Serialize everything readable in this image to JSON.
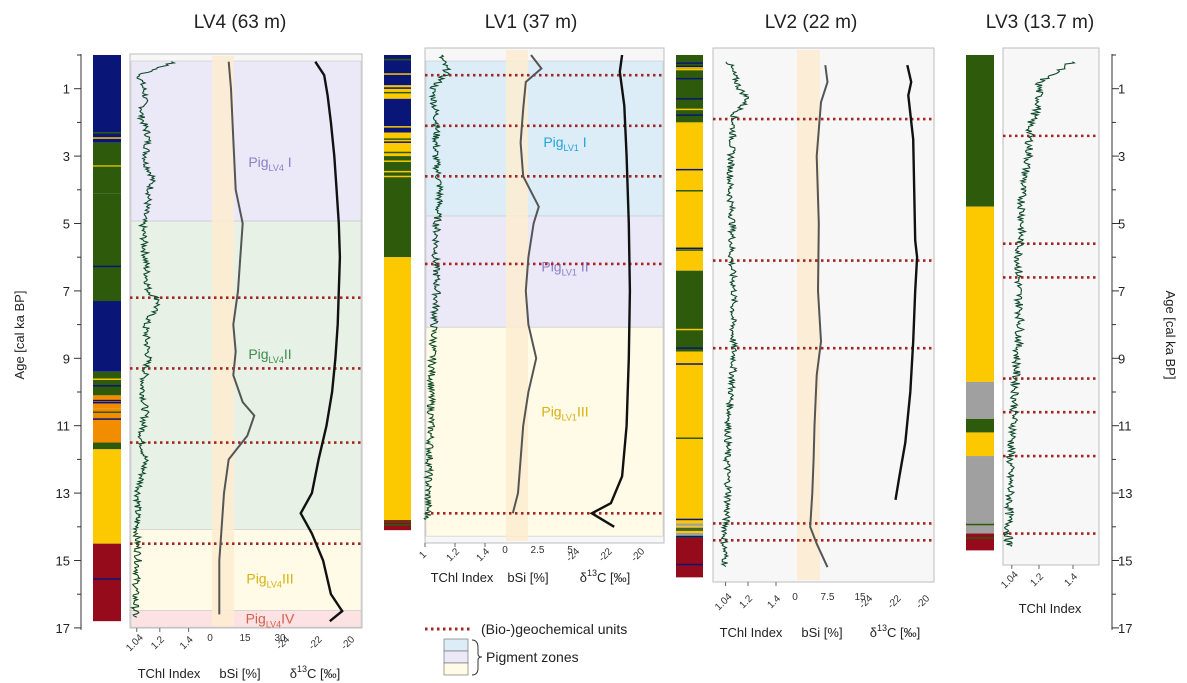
{
  "chart_data": {
    "type": "line",
    "age_axis": {
      "label": "Age [cal ka BP]",
      "ticks": [
        1,
        3,
        5,
        7,
        9,
        11,
        13,
        15,
        17
      ],
      "range": [
        0,
        17
      ]
    },
    "tchl_ticks": [
      {
        "value": 1.04,
        "label": "1.04"
      },
      {
        "value": 1.2,
        "label": "1.2"
      },
      {
        "value": 1.4,
        "label": "1.4"
      }
    ],
    "lv1_tchl_ticks": [
      {
        "value": 1.0,
        "label": "1"
      },
      {
        "value": 1.2,
        "label": "1.2"
      },
      {
        "value": 1.4,
        "label": "1.4"
      }
    ],
    "xlabels": {
      "tchl": "TChl Index",
      "bsi": "bSi [%]",
      "d13c_prefix": "δ",
      "d13c_sup": "13",
      "d13c_suffix": "C [‰]"
    },
    "legend": {
      "units_label": "(Bio-)geochemical units",
      "zones_label": "Pigment zones"
    },
    "colors": {
      "navy": "#0a1677",
      "dkgreen": "#2e5a0c",
      "yellow": "#fcc900",
      "orange": "#f28c00",
      "red": "#960b1b",
      "grey": "#a0a0a0",
      "tchl": "#0e4a2a",
      "dotline": "#a52525",
      "bsi_band": "#fdecd0"
    },
    "panels": [
      {
        "id": "LV4",
        "title": "LV4 (63 m)",
        "bsi_ticks": [
          "0",
          "15",
          "30"
        ],
        "d13c_ticks": [
          "-24",
          "-22",
          "-20"
        ],
        "pigment_bar": [
          {
            "from": 0.0,
            "to": 2.6,
            "color": "navy"
          },
          {
            "from": 2.6,
            "to": 4.1,
            "color": "dkgreen"
          },
          {
            "from": 4.1,
            "to": 7.3,
            "color": "dkgreen"
          },
          {
            "from": 7.3,
            "to": 9.4,
            "color": "navy"
          },
          {
            "from": 9.4,
            "to": 10.1,
            "color": "dkgreen"
          },
          {
            "from": 10.1,
            "to": 10.5,
            "color": "orange"
          },
          {
            "from": 10.5,
            "to": 11.5,
            "color": "orange"
          },
          {
            "from": 11.5,
            "to": 11.7,
            "color": "dkgreen"
          },
          {
            "from": 11.7,
            "to": 14.5,
            "color": "yellow"
          },
          {
            "from": 14.5,
            "to": 16.8,
            "color": "red"
          }
        ],
        "units": [
          7.2,
          9.3,
          11.5,
          14.5
        ],
        "zones": [
          {
            "label": "Pig",
            "sub": "LV4",
            "num": " I",
            "from": 0,
            "to": 4.75,
            "color": "#ebe8f8",
            "text": "#8a7fc9",
            "labelAge": 3.0
          },
          {
            "label": "Pig",
            "sub": "LV4",
            "num": "II",
            "from": 4.75,
            "to": 13.9,
            "color": "#e7f1e6",
            "text": "#3f8a4d",
            "labelAge": 8.7
          },
          {
            "label": "Pig",
            "sub": "LV4",
            "num": "III",
            "from": 13.9,
            "to": 16.3,
            "color": "#fffbe6",
            "text": "#d8b010",
            "labelAge": 15.35
          },
          {
            "label": "Pig",
            "sub": "LV4",
            "num": "IV",
            "from": 16.3,
            "to": 16.8,
            "color": "#fde2e3",
            "text": "#d45f48",
            "labelAge": 16.55
          }
        ],
        "tchl": [
          [
            0.2,
            1.3
          ],
          [
            0.6,
            1.06
          ],
          [
            1.2,
            1.1
          ],
          [
            1.8,
            1.07
          ],
          [
            2.4,
            1.12
          ],
          [
            3.2,
            1.1
          ],
          [
            3.6,
            1.15
          ],
          [
            4.3,
            1.12
          ],
          [
            5.0,
            1.08
          ],
          [
            6.0,
            1.1
          ],
          [
            7.0,
            1.12
          ],
          [
            7.3,
            1.2
          ],
          [
            8.0,
            1.1
          ],
          [
            9.0,
            1.12
          ],
          [
            9.8,
            1.08
          ],
          [
            10.6,
            1.1
          ],
          [
            11.4,
            1.07
          ],
          [
            12.0,
            1.1
          ],
          [
            13.0,
            1.05
          ],
          [
            14.0,
            1.04
          ],
          [
            15.0,
            1.05
          ],
          [
            16.0,
            1.03
          ],
          [
            16.7,
            1.03
          ]
        ],
        "bsi": [
          [
            0.2,
            8
          ],
          [
            1.0,
            9
          ],
          [
            2.5,
            10
          ],
          [
            4.0,
            11
          ],
          [
            5.0,
            14
          ],
          [
            6.0,
            13
          ],
          [
            7.0,
            12
          ],
          [
            8.0,
            10
          ],
          [
            8.8,
            11
          ],
          [
            9.5,
            10
          ],
          [
            10.3,
            14
          ],
          [
            10.7,
            19
          ],
          [
            11.3,
            16
          ],
          [
            12.0,
            8
          ],
          [
            13.0,
            6
          ],
          [
            14.0,
            5
          ],
          [
            15.0,
            4
          ],
          [
            16.0,
            4
          ],
          [
            16.6,
            4
          ]
        ],
        "d13c": [
          [
            0.2,
            -22.3
          ],
          [
            0.6,
            -21.5
          ],
          [
            1.2,
            -21.2
          ],
          [
            2.0,
            -20.9
          ],
          [
            3.0,
            -20.6
          ],
          [
            4.0,
            -20.4
          ],
          [
            5.0,
            -20.2
          ],
          [
            6.0,
            -20.1
          ],
          [
            7.0,
            -20.2
          ],
          [
            8.0,
            -20.3
          ],
          [
            9.0,
            -20.5
          ],
          [
            10.0,
            -20.8
          ],
          [
            11.0,
            -21.3
          ],
          [
            12.0,
            -22.0
          ],
          [
            13.0,
            -22.6
          ],
          [
            13.6,
            -23.6
          ],
          [
            14.2,
            -22.6
          ],
          [
            15.0,
            -21.6
          ],
          [
            16.0,
            -20.9
          ],
          [
            16.5,
            -19.9
          ],
          [
            16.8,
            -21.0
          ]
        ]
      },
      {
        "id": "LV1",
        "title": "LV1 (37 m)",
        "bsi_ticks": [
          "0",
          "2.5",
          "5"
        ],
        "d13c_ticks": [
          "-24",
          "-22",
          "-20"
        ],
        "pigment_bar": [
          {
            "from": 0.0,
            "to": 0.9,
            "color": "navy"
          },
          {
            "from": 0.9,
            "to": 1.3,
            "color": "yellow"
          },
          {
            "from": 1.3,
            "to": 2.3,
            "color": "navy"
          },
          {
            "from": 2.3,
            "to": 3.0,
            "color": "yellow"
          },
          {
            "from": 3.0,
            "to": 6.0,
            "color": "dkgreen"
          },
          {
            "from": 6.0,
            "to": 13.8,
            "color": "yellow"
          },
          {
            "from": 13.8,
            "to": 14.1,
            "color": "red"
          }
        ],
        "units": [
          0.6,
          2.1,
          3.6,
          6.2,
          13.6
        ],
        "zones": [
          {
            "label": "Pig",
            "sub": "LV1",
            "num": " I",
            "from": 0,
            "to": 4.6,
            "color": "#dcedf7",
            "text": "#22a3d9",
            "labelAge": 2.4
          },
          {
            "label": "Pig",
            "sub": "LV1",
            "num": " II",
            "from": 4.6,
            "to": 7.9,
            "color": "#ebe8f8",
            "text": "#8a7fc9",
            "labelAge": 6.1
          },
          {
            "label": "Pig",
            "sub": "LV1",
            "num": "III",
            "from": 7.9,
            "to": 14.1,
            "color": "#fffbe6",
            "text": "#d8b010",
            "labelAge": 10.4
          }
        ],
        "tchl": [
          [
            0.0,
            1.1
          ],
          [
            0.5,
            1.15
          ],
          [
            1.0,
            1.05
          ],
          [
            2.0,
            1.08
          ],
          [
            3.0,
            1.07
          ],
          [
            4.0,
            1.1
          ],
          [
            5.0,
            1.08
          ],
          [
            6.0,
            1.07
          ],
          [
            7.0,
            1.08
          ],
          [
            8.0,
            1.06
          ],
          [
            9.0,
            1.05
          ],
          [
            10.0,
            1.04
          ],
          [
            11.0,
            1.04
          ],
          [
            12.0,
            1.03
          ],
          [
            13.0,
            1.02
          ],
          [
            13.8,
            1.02
          ]
        ],
        "bsi": [
          [
            0.0,
            2.0
          ],
          [
            0.4,
            2.8
          ],
          [
            0.8,
            1.6
          ],
          [
            1.6,
            1.4
          ],
          [
            2.6,
            1.2
          ],
          [
            3.6,
            1.4
          ],
          [
            4.5,
            2.6
          ],
          [
            5.0,
            2.2
          ],
          [
            6.0,
            1.8
          ],
          [
            7.0,
            1.6
          ],
          [
            8.0,
            1.8
          ],
          [
            9.0,
            2.4
          ],
          [
            10.0,
            1.8
          ],
          [
            11.0,
            1.4
          ],
          [
            12.0,
            1.2
          ],
          [
            13.0,
            1.0
          ],
          [
            13.6,
            0.6
          ]
        ],
        "d13c": [
          [
            0.0,
            -20.8
          ],
          [
            0.5,
            -21.0
          ],
          [
            1.5,
            -20.6
          ],
          [
            3.0,
            -20.4
          ],
          [
            5.0,
            -20.2
          ],
          [
            7.0,
            -20.1
          ],
          [
            9.0,
            -20.2
          ],
          [
            11.0,
            -20.4
          ],
          [
            12.5,
            -20.8
          ],
          [
            13.3,
            -21.8
          ],
          [
            13.6,
            -23.5
          ],
          [
            14.0,
            -21.5
          ]
        ]
      },
      {
        "id": "LV2",
        "title": "LV2 (22 m)",
        "bsi_ticks": [
          "0",
          "7.5",
          "15"
        ],
        "d13c_ticks": [
          "-24",
          "-22",
          "-20"
        ],
        "pigment_bar": [
          {
            "from": 0.0,
            "to": 2.0,
            "color": "dkgreen"
          },
          {
            "from": 2.0,
            "to": 6.4,
            "color": "yellow"
          },
          {
            "from": 6.4,
            "to": 8.8,
            "color": "dkgreen"
          },
          {
            "from": 8.8,
            "to": 13.9,
            "color": "yellow"
          },
          {
            "from": 13.9,
            "to": 14.3,
            "color": "grey"
          },
          {
            "from": 14.3,
            "to": 15.5,
            "color": "red"
          }
        ],
        "units": [
          1.9,
          6.1,
          8.7,
          13.9,
          14.4
        ],
        "zones": [],
        "tchl": [
          [
            0.2,
            1.06
          ],
          [
            0.6,
            1.1
          ],
          [
            1.0,
            1.14
          ],
          [
            1.3,
            1.2
          ],
          [
            1.8,
            1.1
          ],
          [
            3.0,
            1.08
          ],
          [
            4.0,
            1.07
          ],
          [
            5.0,
            1.09
          ],
          [
            6.0,
            1.08
          ],
          [
            7.0,
            1.1
          ],
          [
            8.0,
            1.09
          ],
          [
            9.0,
            1.1
          ],
          [
            10.0,
            1.08
          ],
          [
            11.0,
            1.06
          ],
          [
            12.0,
            1.05
          ],
          [
            13.0,
            1.06
          ],
          [
            14.0,
            1.04
          ],
          [
            14.5,
            1.03
          ],
          [
            15.2,
            1.04
          ]
        ],
        "bsi": [
          [
            0.3,
            7.0
          ],
          [
            0.8,
            7.5
          ],
          [
            1.4,
            6.0
          ],
          [
            3.0,
            5.0
          ],
          [
            5.0,
            5.5
          ],
          [
            7.0,
            5.3
          ],
          [
            8.5,
            6.0
          ],
          [
            9.5,
            5.0
          ],
          [
            11.0,
            4.5
          ],
          [
            12.0,
            4.3
          ],
          [
            13.0,
            4.0
          ],
          [
            14.0,
            3.5
          ],
          [
            14.5,
            5.0
          ],
          [
            15.2,
            7.5
          ]
        ],
        "d13c": [
          [
            0.3,
            -21.0
          ],
          [
            0.8,
            -20.6
          ],
          [
            1.2,
            -20.9
          ],
          [
            2.5,
            -20.4
          ],
          [
            4.0,
            -20.3
          ],
          [
            5.5,
            -20.2
          ],
          [
            6.0,
            -20.0
          ],
          [
            7.0,
            -20.2
          ],
          [
            8.5,
            -20.4
          ],
          [
            10.0,
            -20.7
          ],
          [
            11.5,
            -21.2
          ],
          [
            12.5,
            -21.8
          ],
          [
            13.2,
            -22.2
          ]
        ]
      },
      {
        "id": "LV3",
        "title": "LV3 (13.7 m)",
        "bsi_ticks": [],
        "d13c_ticks": [],
        "pigment_bar": [
          {
            "from": 0.0,
            "to": 4.5,
            "color": "dkgreen"
          },
          {
            "from": 4.5,
            "to": 9.7,
            "color": "yellow"
          },
          {
            "from": 9.7,
            "to": 10.8,
            "color": "grey"
          },
          {
            "from": 10.8,
            "to": 11.2,
            "color": "dkgreen"
          },
          {
            "from": 11.2,
            "to": 11.9,
            "color": "yellow"
          },
          {
            "from": 11.9,
            "to": 14.2,
            "color": "grey"
          },
          {
            "from": 14.2,
            "to": 14.7,
            "color": "red"
          }
        ],
        "units": [
          2.4,
          5.6,
          6.6,
          9.6,
          10.6,
          11.9,
          14.2
        ],
        "zones": [],
        "tchl": [
          [
            0.2,
            1.4
          ],
          [
            0.5,
            1.3
          ],
          [
            0.8,
            1.2
          ],
          [
            1.5,
            1.2
          ],
          [
            2.0,
            1.15
          ],
          [
            3.0,
            1.14
          ],
          [
            4.0,
            1.1
          ],
          [
            5.0,
            1.1
          ],
          [
            6.0,
            1.08
          ],
          [
            7.0,
            1.08
          ],
          [
            8.0,
            1.09
          ],
          [
            9.0,
            1.07
          ],
          [
            10.0,
            1.06
          ],
          [
            11.0,
            1.05
          ],
          [
            12.0,
            1.03
          ],
          [
            13.0,
            1.03
          ],
          [
            14.0,
            1.02
          ],
          [
            14.6,
            1.02
          ]
        ]
      }
    ]
  }
}
